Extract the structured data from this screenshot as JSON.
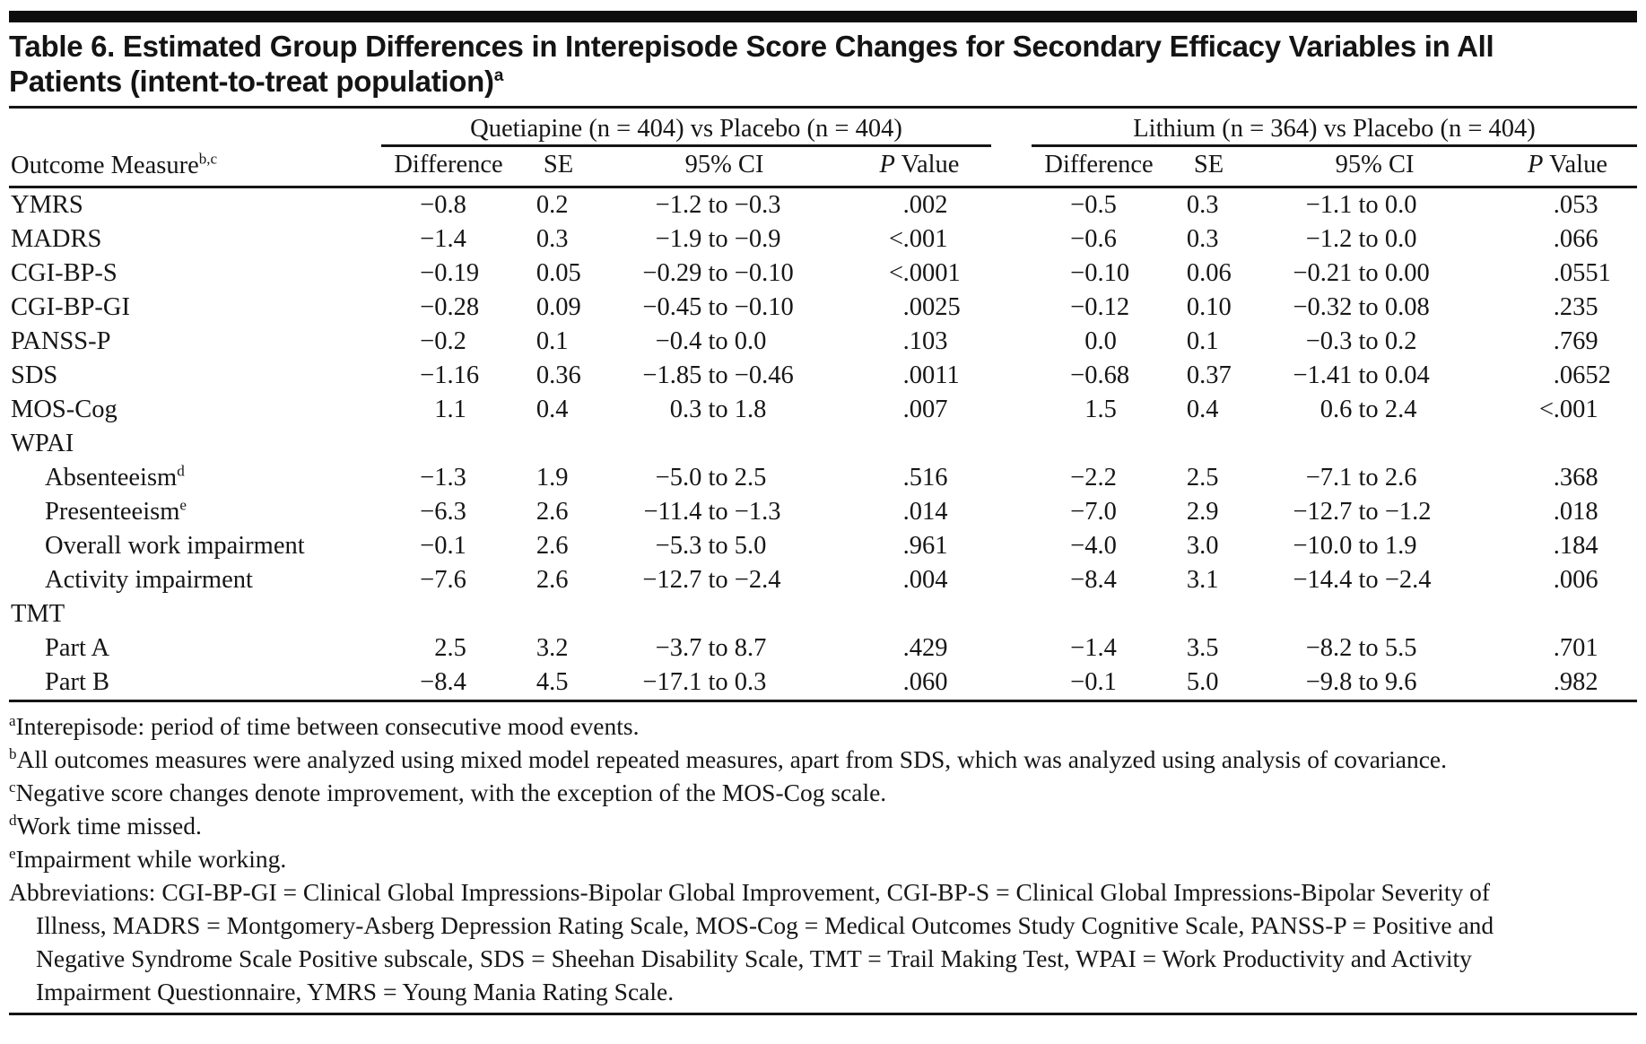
{
  "title": {
    "line1": "Table 6. Estimated Group Differences in Interepisode Score Changes for Secondary Efficacy Variables in All",
    "line2": "Patients (intent-to-treat population)",
    "superscript": "a"
  },
  "table": {
    "row_header": {
      "label": "Outcome Measure",
      "superscript": "b,c"
    },
    "groups": [
      {
        "label": "Quetiapine (n = 404) vs Placebo (n = 404)",
        "columns": [
          "Difference",
          "SE",
          "95% CI",
          "P Value"
        ]
      },
      {
        "label": "Lithium (n = 364) vs Placebo (n = 404)",
        "columns": [
          "Difference",
          "SE",
          "95% CI",
          "P Value"
        ]
      }
    ],
    "rows": [
      {
        "label": "YMRS",
        "sup": "",
        "indent": false,
        "values": [
          "−0.8",
          "0.2",
          "−1.2 to −0.3",
          ".002",
          "−0.5",
          "0.3",
          "−1.1 to 0.0",
          ".053"
        ]
      },
      {
        "label": "MADRS",
        "sup": "",
        "indent": false,
        "values": [
          "−1.4",
          "0.3",
          "−1.9 to −0.9",
          "<.001",
          "−0.6",
          "0.3",
          "−1.2 to 0.0",
          ".066"
        ]
      },
      {
        "label": "CGI-BP-S",
        "sup": "",
        "indent": false,
        "values": [
          "−0.19",
          "0.05",
          "−0.29 to −0.10",
          "<.0001",
          "−0.10",
          "0.06",
          "−0.21 to 0.00",
          ".0551"
        ]
      },
      {
        "label": "CGI-BP-GI",
        "sup": "",
        "indent": false,
        "values": [
          "−0.28",
          "0.09",
          "−0.45 to −0.10",
          ".0025",
          "−0.12",
          "0.10",
          "−0.32 to 0.08",
          ".235"
        ]
      },
      {
        "label": "PANSS-P",
        "sup": "",
        "indent": false,
        "values": [
          "−0.2",
          "0.1",
          "−0.4 to 0.0",
          ".103",
          "0.0",
          "0.1",
          "−0.3 to 0.2",
          ".769"
        ]
      },
      {
        "label": "SDS",
        "sup": "",
        "indent": false,
        "values": [
          "−1.16",
          "0.36",
          "−1.85 to −0.46",
          ".0011",
          "−0.68",
          "0.37",
          "−1.41 to 0.04",
          ".0652"
        ]
      },
      {
        "label": "MOS-Cog",
        "sup": "",
        "indent": false,
        "values": [
          "1.1",
          "0.4",
          "0.3 to 1.8",
          ".007",
          "1.5",
          "0.4",
          "0.6 to 2.4",
          "<.001"
        ]
      },
      {
        "label": "WPAI",
        "sup": "",
        "indent": false,
        "values": []
      },
      {
        "label": "Absenteeism",
        "sup": "d",
        "indent": true,
        "values": [
          "−1.3",
          "1.9",
          "−5.0 to 2.5",
          ".516",
          "−2.2",
          "2.5",
          "−7.1 to 2.6",
          ".368"
        ]
      },
      {
        "label": "Presenteeism",
        "sup": "e",
        "indent": true,
        "values": [
          "−6.3",
          "2.6",
          "−11.4 to −1.3",
          ".014",
          "−7.0",
          "2.9",
          "−12.7 to −1.2",
          ".018"
        ]
      },
      {
        "label": "Overall work impairment",
        "sup": "",
        "indent": true,
        "values": [
          "−0.1",
          "2.6",
          "−5.3 to 5.0",
          ".961",
          "−4.0",
          "3.0",
          "−10.0 to 1.9",
          ".184"
        ]
      },
      {
        "label": "Activity impairment",
        "sup": "",
        "indent": true,
        "values": [
          "−7.6",
          "2.6",
          "−12.7 to −2.4",
          ".004",
          "−8.4",
          "3.1",
          "−14.4 to −2.4",
          ".006"
        ]
      },
      {
        "label": "TMT",
        "sup": "",
        "indent": false,
        "values": []
      },
      {
        "label": "Part A",
        "sup": "",
        "indent": true,
        "values": [
          "2.5",
          "3.2",
          "−3.7 to 8.7",
          ".429",
          "−1.4",
          "3.5",
          "−8.2 to 5.5",
          ".701"
        ]
      },
      {
        "label": "Part B",
        "sup": "",
        "indent": true,
        "values": [
          "−8.4",
          "4.5",
          "−17.1 to 0.3",
          ".060",
          "−0.1",
          "5.0",
          "−9.8 to 9.6",
          ".982"
        ]
      }
    ]
  },
  "footnotes": [
    {
      "marker": "a",
      "text": "Interepisode: period of time between consecutive mood events."
    },
    {
      "marker": "b",
      "text": "All outcomes measures were analyzed using mixed model repeated measures, apart from SDS, which was analyzed using analysis of covariance."
    },
    {
      "marker": "c",
      "text": "Negative score changes denote improvement, with the exception of the MOS-Cog scale."
    },
    {
      "marker": "d",
      "text": "Work time missed."
    },
    {
      "marker": "e",
      "text": "Impairment while working."
    },
    {
      "marker": "",
      "text": "Abbreviations: CGI-BP-GI = Clinical Global Impressions-Bipolar Global Improvement, CGI-BP-S = Clinical Global Impressions-Bipolar Severity of Illness, MADRS = Montgomery-Asberg Depression Rating Scale, MOS-Cog = Medical Outcomes Study Cognitive Scale, PANSS-P = Positive and Negative Syndrome Scale Positive subscale, SDS = Sheehan Disability Scale, TMT = Trail Making Test, WPAI = Work Productivity and Activity Impairment Questionnaire, YMRS = Young Mania Rating Scale."
    }
  ]
}
